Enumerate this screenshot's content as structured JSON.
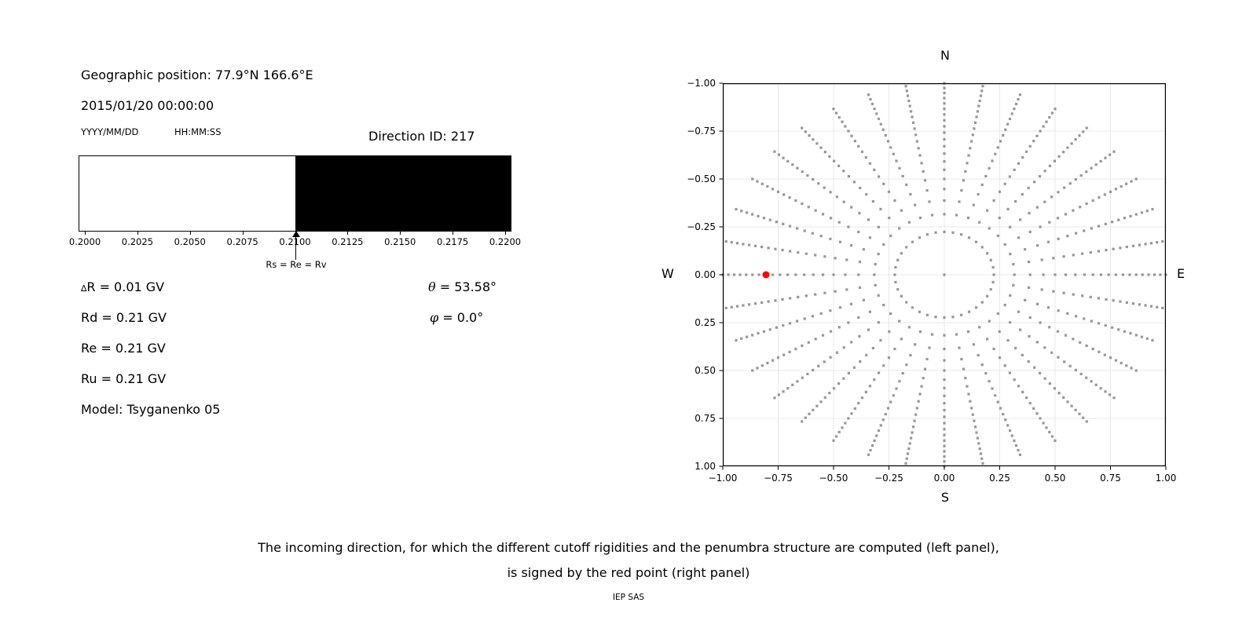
{
  "left_panel": {
    "geo": "Geographic position: 77.9°N 166.6°E",
    "datetime": "2015/01/20 00:00:00",
    "date_format": "YYYY/MM/DD",
    "time_format": "HH:MM:SS",
    "direction_id": "Direction ID: 217",
    "arrow_label": "Rs = Re = Rv",
    "delta_symbol": "∆",
    "delta_rest": "R = 0.01 GV",
    "rd": "Rd = 0.21 GV",
    "re": "Re = 0.21 GV",
    "ru": "Ru = 0.21 GV",
    "model": "Model: Tsyganenko 05",
    "theta_symbol": "θ",
    "theta_value": " = 53.58°",
    "phi_symbol": "φ",
    "phi_value": " = 0.0°"
  },
  "compass": {
    "n": "N",
    "e": "E",
    "s": "S",
    "w": "W"
  },
  "caption": {
    "line1": "The incoming direction, for which the different cutoff rigidities and the penumbra structure are computed (left panel),",
    "line2": "is signed by the red point (right panel)",
    "credit": "IEP SAS"
  },
  "chart_data": [
    {
      "type": "heatmap",
      "title": "penumbra structure bar",
      "axis_range": [
        0.1997,
        0.2203
      ],
      "segments": [
        {
          "from": 0.1997,
          "to": 0.21,
          "color": "#ffffff",
          "meaning": "white band"
        },
        {
          "from": 0.21,
          "to": 0.2203,
          "color": "#000000",
          "meaning": "black band"
        }
      ],
      "tick_values": [
        0.2,
        0.2025,
        0.205,
        0.2075,
        0.21,
        0.2125,
        0.215,
        0.2175,
        0.22
      ],
      "tick_labels": [
        "0.2000",
        "0.2025",
        "0.2050",
        "0.2075",
        "0.2100",
        "0.2125",
        "0.2150",
        "0.2175",
        "0.2200"
      ],
      "annotation": {
        "x": 0.21,
        "label": "Rs = Re = Rv",
        "marker": "up-arrow"
      }
    },
    {
      "type": "scatter",
      "title": "incoming direction grid (hemisphere, N up / E right)",
      "xlim": [
        -1.0,
        1.0
      ],
      "ylim": [
        -1.0,
        1.0
      ],
      "grid": true,
      "grid_color": "#e8e8e8",
      "tick_values": [
        -1.0,
        -0.75,
        -0.5,
        -0.25,
        0.0,
        0.25,
        0.5,
        0.75,
        1.0
      ],
      "x_tick_labels": [
        "−1.00",
        "−0.75",
        "−0.50",
        "−0.25",
        "0.00",
        "0.25",
        "0.50",
        "0.75",
        "1.00"
      ],
      "y_tick_labels": [
        "1.00",
        "0.75",
        "0.50",
        "0.25",
        "0.00",
        "−0.25",
        "−0.50",
        "−0.75",
        "−1.00"
      ],
      "compass_labels": {
        "top": "N",
        "right": "E",
        "bottom": "S",
        "left": "W"
      },
      "dot_color": "#8c8c8c",
      "dot_size_px": 3.2,
      "center_dot": {
        "x": 0.0,
        "y": 0.0
      },
      "azimuth_step_deg": 10,
      "ring_radii": [
        0.2236,
        0.3162,
        0.3873,
        0.4472,
        0.5,
        0.5477,
        0.5916,
        0.6325,
        0.6708,
        0.7071,
        0.7416,
        0.7746,
        0.8062,
        0.8367,
        0.866,
        0.8944,
        0.922,
        0.9487,
        0.9747,
        1.0
      ],
      "ring_radius_rule": "r_k = sqrt(k/20), k = 1..20 (equal-area zenith rings, r = sin(zenith))",
      "selected_direction": {
        "x": -0.805,
        "y": 0.0,
        "color": "#ff0000",
        "radius_px": 4.5
      }
    }
  ]
}
